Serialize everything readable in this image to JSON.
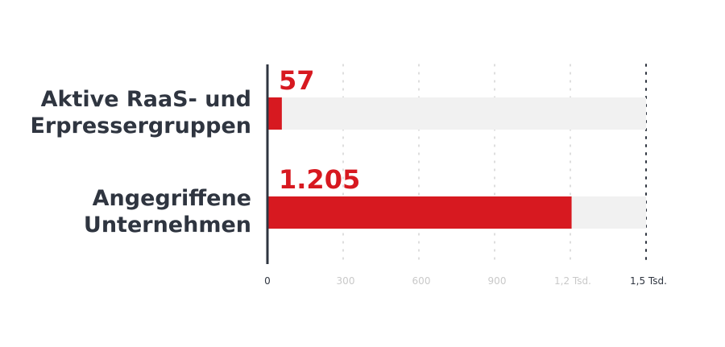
{
  "chart_data": {
    "type": "bar",
    "orientation": "horizontal",
    "categories": [
      [
        "Aktive RaaS- und",
        "Erpressergruppen"
      ],
      [
        "Angegriffene",
        "Unternehmen"
      ]
    ],
    "values": [
      57,
      1205
    ],
    "value_labels": [
      "57",
      "1.205"
    ],
    "xlim": [
      0,
      1500
    ],
    "ticks": [
      {
        "value": 0,
        "label": "0"
      },
      {
        "value": 300,
        "label": "300"
      },
      {
        "value": 600,
        "label": "600"
      },
      {
        "value": 900,
        "label": "900"
      },
      {
        "value": 1200,
        "label": "1,2 Tsd."
      },
      {
        "value": 1500,
        "label": "1,5 Tsd."
      }
    ],
    "grid": true,
    "colors": {
      "bar": "#d71920",
      "track": "#f1f1f1",
      "value_text": "#d71920",
      "category_text": "#2f3540",
      "axis": "#2f3540",
      "grid": "#c9c9c9",
      "tick_muted": "#c9c9c9",
      "tick_strong": "#2f3540"
    }
  }
}
